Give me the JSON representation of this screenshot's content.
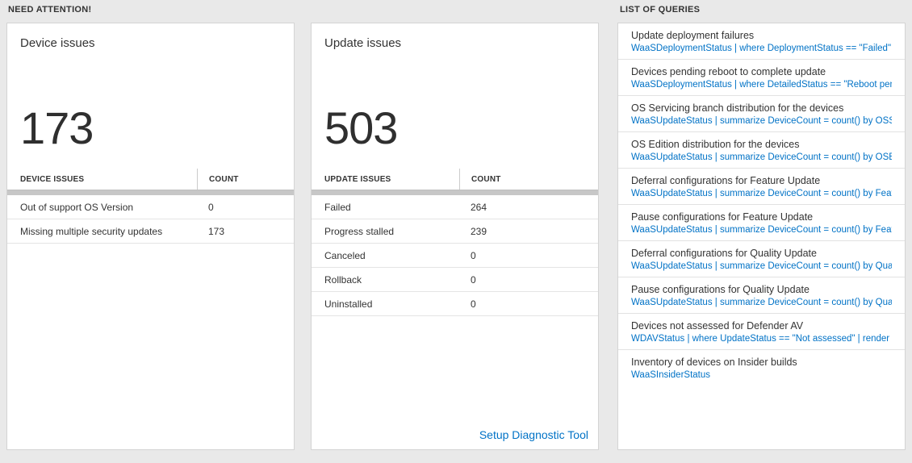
{
  "colors": {
    "page_background": "#e9e9e9",
    "accent_blue": "#0072c6",
    "text_dark": "#333333"
  },
  "need_attention": {
    "header": "NEED ATTENTION!",
    "cards": [
      {
        "title": "Device issues",
        "big_number": "173",
        "table": {
          "columns": [
            "DEVICE ISSUES",
            "COUNT"
          ],
          "rows": [
            [
              "Out of support OS Version",
              "0"
            ],
            [
              "Missing multiple security updates",
              "173"
            ]
          ]
        }
      },
      {
        "title": "Update issues",
        "big_number": "503",
        "table": {
          "columns": [
            "UPDATE ISSUES",
            "COUNT"
          ],
          "rows": [
            [
              "Failed",
              "264"
            ],
            [
              "Progress stalled",
              "239"
            ],
            [
              "Canceled",
              "0"
            ],
            [
              "Rollback",
              "0"
            ],
            [
              "Uninstalled",
              "0"
            ]
          ]
        },
        "footer_link": "Setup Diagnostic Tool"
      }
    ]
  },
  "queries": {
    "header": "LIST OF QUERIES",
    "items": [
      {
        "title": "Update deployment failures",
        "query": "WaaSDeploymentStatus | where DeploymentStatus == \"Failed\" |..."
      },
      {
        "title": "Devices pending reboot to complete update",
        "query": "WaaSDeploymentStatus | where DetailedStatus == \"Reboot pend..."
      },
      {
        "title": "OS Servicing branch distribution for the devices",
        "query": "WaaSUpdateStatus | summarize DeviceCount = count() by OSSer..."
      },
      {
        "title": "OS Edition distribution for the devices",
        "query": "WaaSUpdateStatus | summarize DeviceCount = count() by OSEdit..."
      },
      {
        "title": "Deferral configurations for Feature Update",
        "query": "WaaSUpdateStatus | summarize DeviceCount = count() by Featur..."
      },
      {
        "title": "Pause configurations for Feature Update",
        "query": "WaaSUpdateStatus | summarize DeviceCount = count() by Featur..."
      },
      {
        "title": "Deferral configurations for Quality Update",
        "query": "WaaSUpdateStatus | summarize DeviceCount = count() by Qualit..."
      },
      {
        "title": "Pause configurations for Quality Update",
        "query": "WaaSUpdateStatus | summarize DeviceCount = count() by Qualit..."
      },
      {
        "title": "Devices not assessed for Defender AV",
        "query": "WDAVStatus | where UpdateStatus == \"Not assessed\" | render ta..."
      },
      {
        "title": "Inventory of devices on Insider builds",
        "query": "WaaSInsiderStatus"
      }
    ]
  }
}
